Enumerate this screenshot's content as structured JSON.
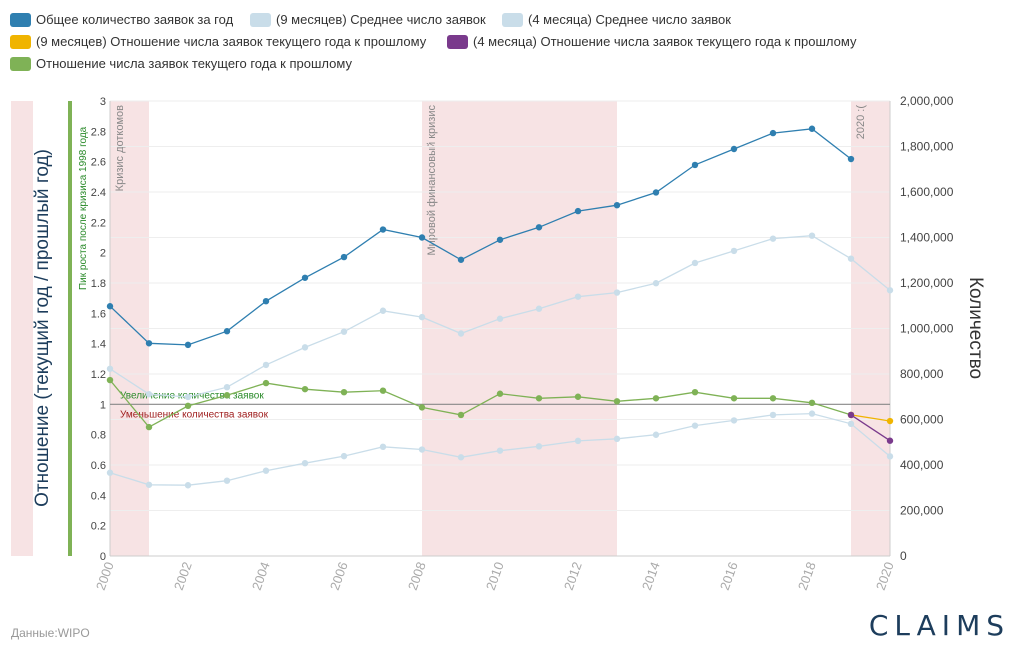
{
  "legend": [
    {
      "label": "Общее количество заявок за год",
      "color": "#2f7fb0"
    },
    {
      "label": "(9 месяцев) Среднее число заявок",
      "color": "#c9dde9"
    },
    {
      "label": "(4 месяца) Среднее число заявок",
      "color": "#c9dde9"
    },
    {
      "label": "(9 месяцев) Отношение числа заявок текущего года к прошлому",
      "color": "#f0b400"
    },
    {
      "label": "(4 месяца) Отношение числа заявок текущего года к прошлому",
      "color": "#7a3a8c"
    },
    {
      "label": "Отношение числа заявок текущего года к прошлому",
      "color": "#7fb256"
    }
  ],
  "source": "Данные:WIPO",
  "logo": "CLAIMS",
  "chart_data": {
    "type": "line",
    "x": [
      2000,
      2001,
      2002,
      2003,
      2004,
      2005,
      2006,
      2007,
      2008,
      2009,
      2010,
      2011,
      2012,
      2013,
      2014,
      2015,
      2016,
      2017,
      2018,
      2019,
      2020
    ],
    "xlim": [
      2000,
      2020
    ],
    "x_ticks": [
      "2000",
      "2002",
      "2004",
      "2006",
      "2008",
      "2010",
      "2012",
      "2014",
      "2016",
      "2018",
      "2020"
    ],
    "left_axis": {
      "label": "Отношение (текущий год / прошлый год)",
      "ylim": [
        0,
        3
      ],
      "ticks": [
        "0",
        "0.2",
        "0.4",
        "0.6",
        "0.8",
        "1",
        "1.2",
        "1.4",
        "1.6",
        "1.8",
        "2",
        "2.2",
        "2.4",
        "2.6",
        "2.8",
        "3"
      ]
    },
    "right_axis": {
      "label": "Количество",
      "ylim": [
        0,
        2000000
      ],
      "ticks": [
        "0",
        "200,000",
        "400,000",
        "600,000",
        "800,000",
        "1,000,000",
        "1,200,000",
        "1,400,000",
        "1,600,000",
        "1,800,000",
        "2,000,000"
      ]
    },
    "series": [
      {
        "name": "Общее количество заявок за год",
        "axis": "right",
        "color": "#2f7fb0",
        "x": [
          2000,
          2001,
          2002,
          2003,
          2004,
          2005,
          2006,
          2007,
          2008,
          2009,
          2010,
          2011,
          2012,
          2013,
          2014,
          2015,
          2016,
          2017,
          2018,
          2019
        ],
        "values": [
          1098000,
          935000,
          928000,
          988000,
          1120000,
          1223000,
          1314000,
          1435000,
          1400000,
          1302000,
          1390000,
          1445000,
          1516000,
          1542000,
          1598000,
          1719000,
          1789000,
          1859000,
          1878000,
          1745000
        ]
      },
      {
        "name": "(9 месяцев) Среднее число заявок",
        "axis": "right",
        "color": "#c9dde9",
        "x": [
          2000,
          2001,
          2002,
          2003,
          2004,
          2005,
          2006,
          2007,
          2008,
          2009,
          2010,
          2011,
          2012,
          2013,
          2014,
          2015,
          2016,
          2017,
          2018,
          2019,
          2020
        ],
        "values": [
          823000,
          711000,
          699000,
          742000,
          840000,
          917000,
          986000,
          1078000,
          1050000,
          978000,
          1043000,
          1087000,
          1140000,
          1158000,
          1199000,
          1288000,
          1341000,
          1395000,
          1408000,
          1307000,
          1168000
        ]
      },
      {
        "name": "(4 месяца) Среднее число заявок",
        "axis": "right",
        "color": "#c9dde9",
        "x": [
          2000,
          2001,
          2002,
          2003,
          2004,
          2005,
          2006,
          2007,
          2008,
          2009,
          2010,
          2011,
          2012,
          2013,
          2014,
          2015,
          2016,
          2017,
          2018,
          2019,
          2020
        ],
        "values": [
          366000,
          313000,
          311000,
          331000,
          375000,
          408000,
          439000,
          480000,
          468000,
          434000,
          463000,
          482000,
          506000,
          515000,
          533000,
          573000,
          596000,
          620000,
          626000,
          581000,
          438000
        ]
      },
      {
        "name": "Отношение числа заявок текущего года к прошлому",
        "axis": "left",
        "color": "#7fb256",
        "x": [
          2000,
          2001,
          2002,
          2003,
          2004,
          2005,
          2006,
          2007,
          2008,
          2009,
          2010,
          2011,
          2012,
          2013,
          2014,
          2015,
          2016,
          2017,
          2018,
          2019
        ],
        "values": [
          1.16,
          0.85,
          0.99,
          1.06,
          1.14,
          1.1,
          1.08,
          1.09,
          0.98,
          0.93,
          1.07,
          1.04,
          1.05,
          1.02,
          1.04,
          1.08,
          1.04,
          1.04,
          1.01,
          0.93
        ]
      },
      {
        "name": "(9 месяцев) Отношение числа заявок текущего года к прошлому",
        "axis": "left",
        "color": "#f0b400",
        "x": [
          2019,
          2020
        ],
        "values": [
          0.93,
          0.89
        ]
      },
      {
        "name": "(4 месяца) Отношение числа заявок текущего года к прошлому",
        "axis": "left",
        "color": "#7a3a8c",
        "x": [
          2019,
          2020
        ],
        "values": [
          0.93,
          0.76
        ]
      }
    ],
    "reference_line": {
      "value": 1,
      "axis": "left",
      "color": "#888888",
      "label_above": "Увеличение количества заявок",
      "label_above_color": "#2a8a2a",
      "label_below": "Уменьшение количества заявок",
      "label_below_color": "#a02020"
    },
    "shaded_periods": [
      {
        "from": 2000,
        "to": 2001,
        "label": "Кризис доткомов"
      },
      {
        "from": 2008,
        "to": 2013,
        "label": "Мировой финансовый кризис"
      },
      {
        "from": 2019,
        "to": 2020,
        "label": "2020 :("
      }
    ],
    "left_marker": {
      "label": "Пик роста после кризиса 1998 года",
      "color": "#7fb256"
    }
  }
}
